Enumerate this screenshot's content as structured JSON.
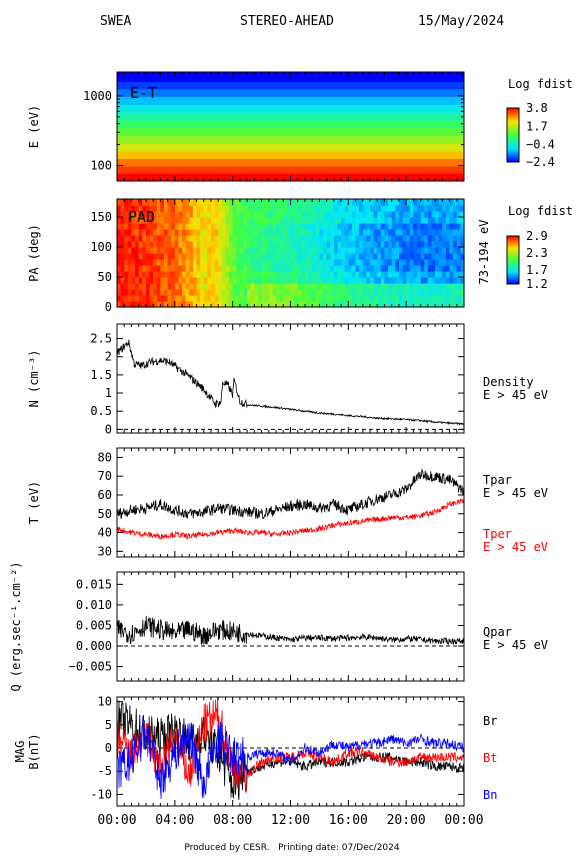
{
  "header": {
    "instrument": "SWEA",
    "spacecraft": "STEREO-AHEAD",
    "date": "15/May/2024"
  },
  "footer": {
    "produced_by": "Produced by CESR.",
    "printing_date": "Printing date: 07/Dec/2024"
  },
  "chart_data": [
    {
      "type": "heatmap",
      "panel_label": "E-T",
      "ylabel": "E (eV)",
      "y_scale": "log",
      "yticks": [
        100,
        1000
      ],
      "ylim": [
        60,
        2200
      ],
      "colorbar": {
        "title": "Log fdist",
        "ticks": [
          3.8,
          1.7,
          -0.4,
          -2.4
        ],
        "range": [
          -2.4,
          3.8
        ]
      },
      "energy_bands_log_fdist": [
        {
          "e": 1800,
          "v": -2.4
        },
        {
          "e": 1400,
          "v": -2.0
        },
        {
          "e": 1100,
          "v": -1.6
        },
        {
          "e": 850,
          "v": -1.1
        },
        {
          "e": 650,
          "v": -0.6
        },
        {
          "e": 500,
          "v": -0.1
        },
        {
          "e": 390,
          "v": 0.4
        },
        {
          "e": 300,
          "v": 0.9
        },
        {
          "e": 230,
          "v": 1.4
        },
        {
          "e": 180,
          "v": 1.9
        },
        {
          "e": 140,
          "v": 2.5
        },
        {
          "e": 110,
          "v": 3.0
        },
        {
          "e": 85,
          "v": 3.4
        },
        {
          "e": 68,
          "v": 3.8
        }
      ]
    },
    {
      "type": "heatmap",
      "panel_label": "PAD",
      "ylabel": "PA (deg)",
      "yticks": [
        0,
        50,
        100,
        150
      ],
      "ylim": [
        0,
        180
      ],
      "right_label": "73-194 eV",
      "colorbar": {
        "title": "Log fdist",
        "ticks": [
          2.9,
          2.3,
          1.7,
          1.2
        ],
        "range": [
          1.2,
          2.9
        ]
      },
      "time_profile_hours": [
        0,
        2,
        4,
        5,
        6,
        7,
        8,
        9,
        11,
        13,
        15,
        17,
        19,
        21,
        23,
        24
      ],
      "time_profile_log_fdist": [
        2.85,
        2.8,
        2.7,
        2.6,
        2.45,
        2.5,
        2.1,
        2.0,
        1.95,
        1.85,
        1.7,
        1.6,
        1.55,
        1.5,
        1.5,
        1.55
      ]
    },
    {
      "type": "line",
      "ylabel": "N (cm⁻³)",
      "ylim": [
        -0.1,
        2.9
      ],
      "yticks": [
        0.0,
        0.5,
        1.0,
        1.5,
        2.0,
        2.5
      ],
      "reference_line": 0,
      "labels": [
        "Density",
        "E > 45 eV"
      ],
      "series": [
        {
          "color": "#000000",
          "x": [
            0,
            0.3,
            0.8,
            1.2,
            1.7,
            2.3,
            3.0,
            3.6,
            4.3,
            5.0,
            5.6,
            6.0,
            6.4,
            6.8,
            7.2,
            7.3,
            7.7,
            8.0,
            8.1,
            8.5,
            9.0,
            10,
            11,
            12,
            13,
            14,
            15,
            16,
            17,
            18,
            19,
            20,
            21,
            22,
            23,
            24
          ],
          "y": [
            2.1,
            2.2,
            2.4,
            1.8,
            1.75,
            1.85,
            1.9,
            1.85,
            1.65,
            1.45,
            1.25,
            1.1,
            0.9,
            0.7,
            0.75,
            1.3,
            1.2,
            0.95,
            1.35,
            0.78,
            0.68,
            0.64,
            0.6,
            0.55,
            0.5,
            0.45,
            0.42,
            0.38,
            0.35,
            0.31,
            0.29,
            0.27,
            0.24,
            0.2,
            0.17,
            0.15
          ]
        }
      ]
    },
    {
      "type": "line",
      "ylabel": "T (eV)",
      "ylim": [
        27,
        85
      ],
      "yticks": [
        30,
        40,
        50,
        60,
        70,
        80
      ],
      "series": [
        {
          "name": "Tpar",
          "sublabel": "E > 45 eV",
          "color": "#000000",
          "x": [
            0,
            1,
            2,
            3,
            4,
            5,
            6,
            7,
            8,
            9,
            10,
            11,
            12,
            13,
            14,
            15,
            16,
            17,
            18,
            19,
            20,
            21,
            22,
            23,
            24
          ],
          "y": [
            50,
            52,
            53,
            55,
            52,
            50,
            51,
            53,
            52,
            51,
            50,
            52,
            54,
            55,
            53,
            55,
            52,
            55,
            58,
            60,
            63,
            71,
            70,
            68,
            62
          ]
        },
        {
          "name": "Tper",
          "sublabel": "E > 45 eV",
          "color": "#ff0000",
          "x": [
            0,
            1,
            2,
            3,
            4,
            5,
            6,
            7,
            8,
            9,
            10,
            11,
            12,
            13,
            14,
            15,
            16,
            17,
            18,
            19,
            20,
            21,
            22,
            23,
            24
          ],
          "y": [
            42,
            40,
            39,
            38,
            39,
            38,
            39,
            40,
            41,
            40,
            40,
            39,
            40,
            41,
            42,
            44,
            45,
            46,
            47,
            48,
            48,
            49,
            51,
            55,
            57
          ]
        }
      ]
    },
    {
      "type": "line",
      "ylabel": "Q (erg.sec⁻¹.cm⁻²)",
      "ylim": [
        -0.0085,
        0.018
      ],
      "yticks": [
        -0.005,
        0.0,
        0.005,
        0.01,
        0.015
      ],
      "ytick_labels": [
        "−0.005",
        "0.000",
        "0.005",
        "0.010",
        "0.015"
      ],
      "reference_line": 0,
      "labels": [
        "Qpar",
        "E > 45 eV"
      ],
      "series": [
        {
          "color": "#000000",
          "x": [
            0,
            1,
            2,
            3,
            4,
            5,
            6,
            7,
            8,
            9,
            10,
            11,
            12,
            13,
            14,
            15,
            16,
            17,
            18,
            19,
            20,
            21,
            22,
            23,
            24
          ],
          "y": [
            0.004,
            0.003,
            0.005,
            0.004,
            0.003,
            0.004,
            0.0025,
            0.004,
            0.0035,
            0.003,
            0.0025,
            0.002,
            0.0015,
            0.002,
            0.002,
            0.0018,
            0.002,
            0.0022,
            0.002,
            0.0015,
            0.0018,
            0.0016,
            0.0012,
            0.0012,
            0.0012
          ]
        }
      ]
    },
    {
      "type": "line",
      "ylabel": "MAG",
      "ylabel2": "B(nT)",
      "ylim": [
        -12.5,
        11
      ],
      "yticks": [
        -10,
        -5,
        0,
        5,
        10
      ],
      "reference_line": 0,
      "xlabel_ticks": [
        "00:00",
        "04:00",
        "08:00",
        "12:00",
        "16:00",
        "20:00",
        "00:00"
      ],
      "series": [
        {
          "name": "Br",
          "color": "#000000",
          "x": [
            0,
            1,
            2,
            3,
            4,
            5,
            6,
            7,
            8,
            9,
            10,
            11,
            12,
            13,
            14,
            15,
            16,
            17,
            18,
            19,
            20,
            21,
            22,
            23,
            24
          ],
          "y": [
            6,
            5,
            3,
            2,
            4,
            1,
            3,
            -1,
            -8,
            -5,
            -4,
            -3,
            -3,
            -4,
            -3,
            -3,
            -3,
            -2,
            -2,
            -2,
            -3,
            -3,
            -4,
            -4,
            -4.5
          ]
        },
        {
          "name": "Bt",
          "color": "#ff0000",
          "x": [
            0,
            1,
            2,
            3,
            4,
            5,
            6,
            7,
            8,
            9,
            10,
            11,
            12,
            13,
            14,
            15,
            16,
            17,
            18,
            19,
            20,
            21,
            22,
            23,
            24
          ],
          "y": [
            2,
            -2,
            3,
            -5,
            2,
            -6,
            5,
            7,
            -4,
            -6,
            -3,
            -2,
            -2,
            -1,
            -2,
            -3,
            -1,
            -1,
            -2,
            -3,
            -3,
            -2,
            -2,
            -2,
            -2
          ]
        },
        {
          "name": "Bn",
          "color": "#0000ff",
          "x": [
            0,
            1,
            2,
            3,
            4,
            5,
            6,
            7,
            8,
            9,
            10,
            11,
            12,
            13,
            14,
            15,
            16,
            17,
            18,
            19,
            20,
            21,
            22,
            23,
            24
          ],
          "y": [
            -5,
            -3,
            4,
            -7,
            -1,
            3,
            -8,
            2,
            -2,
            -2,
            -1,
            -1,
            -3,
            0,
            -1,
            1,
            0,
            1,
            1,
            2,
            1,
            2,
            1,
            1,
            0
          ]
        }
      ]
    }
  ]
}
